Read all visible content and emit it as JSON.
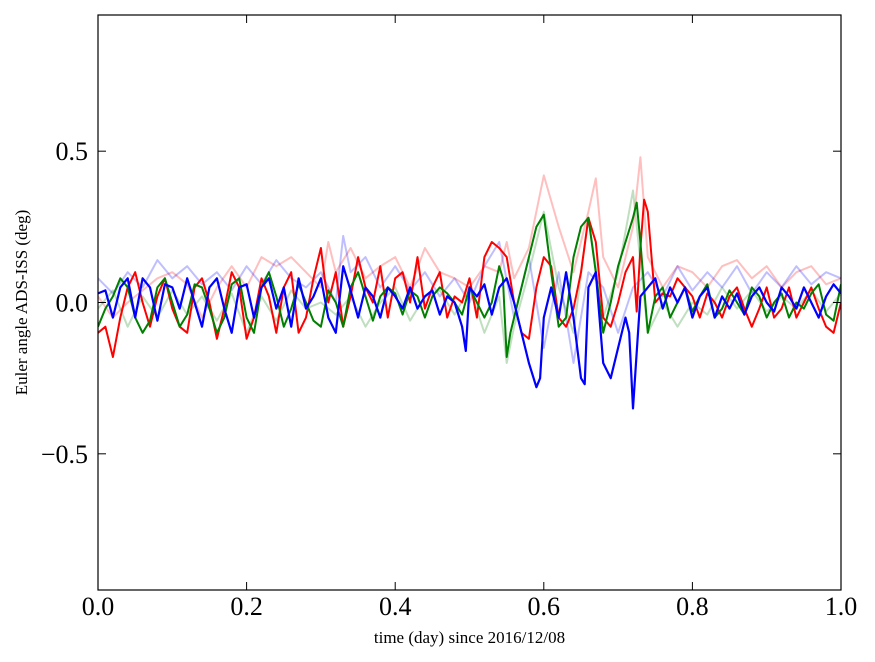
{
  "chart_data": {
    "type": "line",
    "xlabel": "time (day) since 2016/12/08",
    "ylabel": "Euler angle ADS-ISS (deg)",
    "xlim": [
      0.0,
      1.0
    ],
    "ylim": [
      -0.95,
      0.95
    ],
    "grid": false,
    "x_ticks": [
      0.0,
      0.2,
      0.4,
      0.6,
      0.8,
      1.0
    ],
    "x_tick_labels": [
      "0.0",
      "0.2",
      "0.4",
      "0.6",
      "0.8",
      "1.0"
    ],
    "y_ticks": [
      -0.5,
      0.0,
      0.5
    ],
    "y_tick_labels": [
      "−0.5",
      "0.0",
      "0.5"
    ],
    "series": [
      {
        "color": "#ff0000",
        "alpha": 0.25,
        "width": 2,
        "x": [
          0.0,
          0.02,
          0.04,
          0.06,
          0.08,
          0.1,
          0.12,
          0.14,
          0.16,
          0.18,
          0.2,
          0.22,
          0.24,
          0.26,
          0.28,
          0.3,
          0.31,
          0.32,
          0.34,
          0.36,
          0.38,
          0.4,
          0.42,
          0.44,
          0.46,
          0.48,
          0.5,
          0.52,
          0.54,
          0.55,
          0.56,
          0.58,
          0.6,
          0.62,
          0.64,
          0.66,
          0.67,
          0.68,
          0.7,
          0.72,
          0.73,
          0.74,
          0.76,
          0.78,
          0.8,
          0.82,
          0.84,
          0.86,
          0.88,
          0.9,
          0.92,
          0.94,
          0.96,
          0.98,
          1.0
        ],
        "y": [
          0.02,
          -0.05,
          0.0,
          0.04,
          0.08,
          0.1,
          0.06,
          -0.05,
          0.05,
          0.12,
          0.05,
          0.15,
          0.12,
          0.15,
          0.1,
          0.05,
          0.2,
          0.1,
          0.18,
          0.08,
          0.12,
          0.15,
          0.05,
          0.18,
          0.1,
          0.08,
          0.05,
          0.12,
          0.1,
          0.2,
          0.08,
          0.18,
          0.42,
          0.25,
          0.1,
          0.3,
          0.41,
          0.15,
          0.05,
          0.25,
          0.48,
          0.15,
          0.05,
          0.12,
          0.1,
          0.05,
          0.12,
          0.14,
          0.08,
          0.12,
          0.05,
          0.1,
          0.12,
          0.06,
          0.08
        ]
      },
      {
        "color": "#008000",
        "alpha": 0.25,
        "width": 2,
        "x": [
          0.0,
          0.02,
          0.04,
          0.06,
          0.08,
          0.1,
          0.12,
          0.14,
          0.16,
          0.18,
          0.2,
          0.22,
          0.24,
          0.26,
          0.28,
          0.3,
          0.32,
          0.34,
          0.36,
          0.38,
          0.4,
          0.42,
          0.44,
          0.46,
          0.48,
          0.5,
          0.52,
          0.54,
          0.55,
          0.56,
          0.58,
          0.6,
          0.62,
          0.64,
          0.66,
          0.68,
          0.7,
          0.72,
          0.74,
          0.76,
          0.78,
          0.8,
          0.82,
          0.84,
          0.86,
          0.88,
          0.9,
          0.92,
          0.94,
          0.96,
          0.98,
          1.0
        ],
        "y": [
          -0.02,
          0.04,
          -0.08,
          0.02,
          -0.05,
          0.04,
          -0.04,
          0.02,
          -0.06,
          0.03,
          -0.1,
          0.02,
          -0.06,
          0.04,
          -0.02,
          0.0,
          -0.04,
          0.02,
          -0.08,
          0.0,
          0.05,
          -0.06,
          0.02,
          0.04,
          -0.04,
          0.05,
          -0.1,
          0.02,
          -0.2,
          -0.08,
          0.1,
          0.3,
          0.05,
          -0.1,
          0.28,
          -0.05,
          0.1,
          0.37,
          -0.1,
          0.0,
          -0.08,
          0.0,
          -0.04,
          0.05,
          -0.02,
          0.04,
          -0.03,
          0.02,
          -0.02,
          0.04,
          -0.03,
          0.03
        ]
      },
      {
        "color": "#0000ff",
        "alpha": 0.25,
        "width": 2,
        "x": [
          0.0,
          0.02,
          0.04,
          0.06,
          0.08,
          0.1,
          0.12,
          0.14,
          0.16,
          0.18,
          0.2,
          0.22,
          0.24,
          0.26,
          0.28,
          0.3,
          0.32,
          0.33,
          0.34,
          0.36,
          0.38,
          0.4,
          0.42,
          0.44,
          0.46,
          0.48,
          0.5,
          0.52,
          0.54,
          0.56,
          0.58,
          0.6,
          0.62,
          0.64,
          0.66,
          0.68,
          0.7,
          0.72,
          0.74,
          0.76,
          0.78,
          0.8,
          0.82,
          0.84,
          0.86,
          0.88,
          0.9,
          0.92,
          0.94,
          0.96,
          0.98,
          1.0
        ],
        "y": [
          0.08,
          0.03,
          0.1,
          0.05,
          0.14,
          0.08,
          0.12,
          0.06,
          0.1,
          0.04,
          0.12,
          0.06,
          0.14,
          0.08,
          0.05,
          0.1,
          0.0,
          0.22,
          0.1,
          0.15,
          0.05,
          0.12,
          0.04,
          0.1,
          0.02,
          0.08,
          0.0,
          0.12,
          0.2,
          -0.05,
          0.15,
          -0.15,
          0.1,
          -0.2,
          0.1,
          0.05,
          -0.1,
          0.05,
          0.1,
          0.02,
          0.12,
          0.04,
          0.1,
          0.05,
          0.12,
          0.03,
          0.1,
          0.05,
          0.12,
          0.06,
          0.1,
          0.08
        ]
      },
      {
        "color": "#ff0000",
        "alpha": 1.0,
        "width": 2,
        "x": [
          0.0,
          0.01,
          0.02,
          0.03,
          0.04,
          0.05,
          0.06,
          0.07,
          0.08,
          0.09,
          0.1,
          0.11,
          0.12,
          0.13,
          0.14,
          0.15,
          0.16,
          0.17,
          0.18,
          0.19,
          0.2,
          0.21,
          0.22,
          0.23,
          0.24,
          0.25,
          0.26,
          0.27,
          0.28,
          0.29,
          0.3,
          0.305,
          0.31,
          0.32,
          0.33,
          0.34,
          0.35,
          0.36,
          0.37,
          0.38,
          0.39,
          0.4,
          0.41,
          0.42,
          0.43,
          0.44,
          0.45,
          0.46,
          0.47,
          0.48,
          0.49,
          0.5,
          0.51,
          0.52,
          0.53,
          0.54,
          0.55,
          0.56,
          0.57,
          0.58,
          0.59,
          0.6,
          0.61,
          0.62,
          0.63,
          0.64,
          0.65,
          0.66,
          0.67,
          0.68,
          0.69,
          0.7,
          0.71,
          0.72,
          0.725,
          0.73,
          0.735,
          0.74,
          0.75,
          0.76,
          0.77,
          0.78,
          0.79,
          0.8,
          0.81,
          0.82,
          0.83,
          0.84,
          0.85,
          0.86,
          0.87,
          0.88,
          0.89,
          0.9,
          0.91,
          0.92,
          0.93,
          0.94,
          0.95,
          0.96,
          0.97,
          0.98,
          0.99,
          1.0
        ],
        "y": [
          -0.1,
          -0.08,
          -0.18,
          -0.05,
          0.05,
          0.1,
          0.0,
          -0.08,
          0.02,
          0.08,
          -0.02,
          -0.08,
          -0.1,
          0.05,
          0.08,
          0.0,
          -0.12,
          -0.02,
          0.1,
          0.05,
          -0.12,
          -0.05,
          0.08,
          0.02,
          -0.1,
          0.05,
          0.1,
          -0.1,
          -0.05,
          0.08,
          0.18,
          0.08,
          0.0,
          0.1,
          -0.08,
          0.02,
          0.15,
          0.05,
          0.0,
          0.12,
          -0.05,
          0.08,
          0.1,
          0.0,
          0.15,
          -0.02,
          0.05,
          0.1,
          -0.05,
          0.02,
          0.0,
          0.08,
          -0.05,
          0.15,
          0.2,
          0.18,
          0.15,
          0.0,
          -0.1,
          -0.12,
          0.05,
          0.15,
          0.12,
          -0.05,
          -0.08,
          -0.02,
          0.1,
          0.28,
          0.2,
          -0.05,
          -0.08,
          0.0,
          0.1,
          0.15,
          -0.03,
          0.18,
          0.34,
          0.3,
          0.0,
          0.03,
          0.02,
          0.08,
          0.05,
          0.02,
          -0.05,
          0.03,
          0.0,
          -0.05,
          0.02,
          0.05,
          -0.02,
          -0.08,
          -0.02,
          0.05,
          -0.05,
          -0.02,
          0.05,
          -0.05,
          0.0,
          0.05,
          -0.02,
          -0.08,
          -0.1,
          0.0
        ]
      },
      {
        "color": "#008000",
        "alpha": 1.0,
        "width": 2,
        "x": [
          0.0,
          0.01,
          0.02,
          0.03,
          0.04,
          0.05,
          0.06,
          0.07,
          0.08,
          0.09,
          0.1,
          0.11,
          0.12,
          0.13,
          0.14,
          0.15,
          0.16,
          0.17,
          0.18,
          0.19,
          0.2,
          0.21,
          0.22,
          0.23,
          0.24,
          0.25,
          0.26,
          0.27,
          0.28,
          0.29,
          0.3,
          0.31,
          0.32,
          0.33,
          0.34,
          0.35,
          0.36,
          0.37,
          0.38,
          0.39,
          0.4,
          0.41,
          0.42,
          0.43,
          0.44,
          0.45,
          0.46,
          0.47,
          0.48,
          0.49,
          0.5,
          0.51,
          0.52,
          0.53,
          0.54,
          0.545,
          0.55,
          0.555,
          0.56,
          0.57,
          0.58,
          0.59,
          0.6,
          0.61,
          0.62,
          0.63,
          0.64,
          0.65,
          0.66,
          0.67,
          0.68,
          0.69,
          0.7,
          0.71,
          0.72,
          0.725,
          0.73,
          0.74,
          0.75,
          0.76,
          0.77,
          0.78,
          0.79,
          0.8,
          0.81,
          0.82,
          0.83,
          0.84,
          0.85,
          0.86,
          0.87,
          0.88,
          0.89,
          0.9,
          0.91,
          0.92,
          0.93,
          0.94,
          0.95,
          0.96,
          0.97,
          0.98,
          0.99,
          1.0
        ],
        "y": [
          -0.08,
          -0.02,
          0.02,
          0.08,
          0.05,
          -0.05,
          -0.1,
          -0.06,
          0.05,
          0.08,
          0.0,
          -0.08,
          -0.04,
          0.06,
          0.05,
          -0.02,
          -0.1,
          -0.05,
          0.06,
          0.08,
          -0.05,
          -0.1,
          0.05,
          0.1,
          0.02,
          -0.08,
          -0.02,
          0.06,
          0.0,
          -0.06,
          -0.08,
          0.04,
          0.0,
          -0.08,
          0.05,
          0.1,
          0.02,
          -0.06,
          0.02,
          0.05,
          0.03,
          -0.04,
          0.04,
          0.02,
          -0.05,
          0.02,
          0.05,
          0.03,
          0.0,
          -0.04,
          0.05,
          0.0,
          -0.05,
          0.0,
          0.12,
          0.08,
          -0.18,
          -0.1,
          -0.05,
          0.05,
          0.15,
          0.25,
          0.29,
          0.1,
          -0.08,
          -0.05,
          0.15,
          0.25,
          0.28,
          0.1,
          -0.1,
          0.0,
          0.12,
          0.2,
          0.28,
          0.33,
          0.2,
          -0.1,
          0.02,
          0.05,
          -0.05,
          0.0,
          0.05,
          -0.03,
          0.02,
          0.06,
          -0.05,
          -0.02,
          0.04,
          0.0,
          -0.04,
          0.05,
          0.02,
          -0.05,
          0.0,
          0.03,
          -0.05,
          0.0,
          -0.02,
          0.03,
          0.06,
          -0.04,
          -0.06,
          0.06
        ]
      },
      {
        "color": "#0000ff",
        "alpha": 1.0,
        "width": 2.2,
        "x": [
          0.0,
          0.01,
          0.02,
          0.03,
          0.04,
          0.05,
          0.06,
          0.07,
          0.08,
          0.09,
          0.1,
          0.11,
          0.12,
          0.13,
          0.14,
          0.15,
          0.16,
          0.17,
          0.18,
          0.19,
          0.2,
          0.21,
          0.22,
          0.23,
          0.24,
          0.25,
          0.26,
          0.27,
          0.28,
          0.29,
          0.3,
          0.31,
          0.32,
          0.33,
          0.34,
          0.35,
          0.36,
          0.37,
          0.38,
          0.39,
          0.4,
          0.41,
          0.42,
          0.43,
          0.44,
          0.45,
          0.46,
          0.47,
          0.48,
          0.49,
          0.495,
          0.5,
          0.51,
          0.52,
          0.53,
          0.54,
          0.55,
          0.56,
          0.57,
          0.58,
          0.59,
          0.595,
          0.6,
          0.61,
          0.62,
          0.63,
          0.64,
          0.65,
          0.655,
          0.66,
          0.67,
          0.675,
          0.68,
          0.69,
          0.7,
          0.71,
          0.715,
          0.72,
          0.73,
          0.74,
          0.75,
          0.76,
          0.77,
          0.78,
          0.79,
          0.8,
          0.81,
          0.82,
          0.83,
          0.84,
          0.85,
          0.86,
          0.87,
          0.88,
          0.89,
          0.9,
          0.91,
          0.92,
          0.93,
          0.94,
          0.95,
          0.96,
          0.97,
          0.98,
          0.99,
          1.0
        ],
        "y": [
          0.03,
          0.04,
          -0.05,
          0.05,
          0.08,
          -0.05,
          0.08,
          0.05,
          -0.06,
          0.06,
          0.05,
          -0.02,
          0.08,
          0.0,
          -0.08,
          0.05,
          0.08,
          -0.02,
          -0.1,
          0.05,
          0.06,
          -0.05,
          0.05,
          0.08,
          -0.02,
          0.05,
          -0.08,
          0.08,
          -0.02,
          0.02,
          0.08,
          -0.05,
          -0.1,
          0.12,
          0.04,
          -0.05,
          0.05,
          0.02,
          -0.05,
          0.05,
          0.02,
          -0.02,
          0.05,
          -0.02,
          0.02,
          0.04,
          -0.04,
          0.02,
          0.0,
          -0.08,
          -0.16,
          0.05,
          0.02,
          0.06,
          -0.04,
          0.05,
          0.08,
          0.0,
          -0.1,
          -0.2,
          -0.28,
          -0.25,
          -0.05,
          0.05,
          -0.05,
          0.1,
          -0.05,
          -0.25,
          -0.27,
          0.05,
          0.1,
          -0.05,
          -0.2,
          -0.25,
          -0.15,
          -0.05,
          -0.1,
          -0.35,
          0.02,
          0.05,
          0.08,
          -0.02,
          0.05,
          0.0,
          0.05,
          -0.05,
          0.02,
          0.05,
          -0.05,
          0.02,
          -0.02,
          0.03,
          -0.04,
          0.02,
          0.05,
          0.0,
          -0.03,
          0.05,
          0.02,
          -0.02,
          0.05,
          0.0,
          -0.05,
          0.02,
          0.06,
          0.03
        ]
      }
    ]
  }
}
